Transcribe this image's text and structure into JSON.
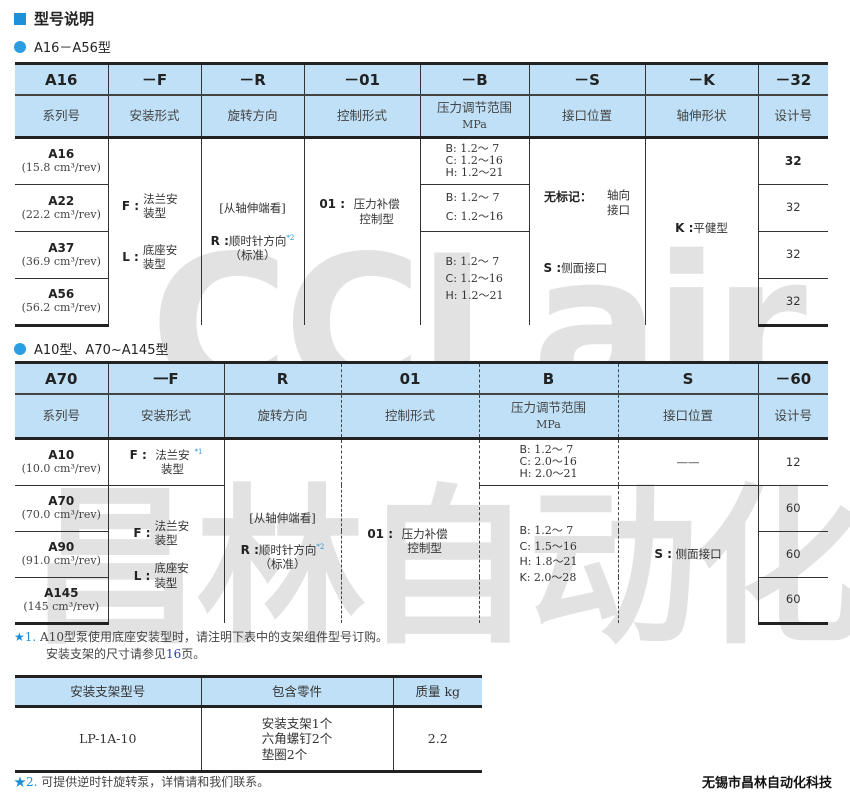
{
  "watermark": {
    "logo_text": "CCLair",
    "cn_text": "昌林自动化"
  },
  "heading": "型号说明",
  "section1": {
    "title": "A16－A56型",
    "codes": [
      "A16",
      "－F",
      "－R",
      "－01",
      "－B",
      "－S",
      "－K",
      "－32"
    ],
    "labels": [
      "系列号",
      "安装形式",
      "旋转方向",
      "控制形式",
      "压力调节范围",
      "接口位置",
      "轴伸形状",
      "设计号"
    ],
    "pressure_unit": "MPa",
    "series": [
      {
        "model": "A16",
        "disp": "(15.8 cm³/rev)",
        "design": "32"
      },
      {
        "model": "A22",
        "disp": "(22.2 cm³/rev)",
        "design": "32"
      },
      {
        "model": "A37",
        "disp": "(36.9 cm³/rev)",
        "design": "32"
      },
      {
        "model": "A56",
        "disp": "(56.2 cm³/rev)",
        "design": "32"
      }
    ],
    "mount": [
      {
        "code": "F :",
        "text": "法兰安装型"
      },
      {
        "code": "L :",
        "text": "底座安装型"
      }
    ],
    "rotation": {
      "view": "[从轴伸端看]",
      "code": "R :",
      "text": "顺时针方向",
      "std": "（标准）",
      "note": "*2"
    },
    "control": {
      "code": "01 :",
      "text": "压力补偿控制型"
    },
    "pressure": [
      [
        {
          "k": "B",
          "v": ": 1.2～ 7"
        },
        {
          "k": "C",
          "v": ": 1.2～16"
        },
        {
          "k": "H",
          "v": ": 1.2～21"
        }
      ],
      [
        {
          "k": "B",
          "v": ": 1.2～ 7"
        },
        {
          "k": "C",
          "v": ": 1.2～16"
        }
      ],
      [
        {
          "k": "B",
          "v": ": 1.2～ 7"
        },
        {
          "k": "C",
          "v": ": 1.2～16"
        },
        {
          "k": "H",
          "v": ": 1.2～21"
        }
      ]
    ],
    "port": [
      {
        "code": "无标记：",
        "text": "轴向接口"
      },
      {
        "code": "S :",
        "text": "侧面接口"
      }
    ],
    "shaft": {
      "code": "K :",
      "text": "平健型"
    }
  },
  "section2": {
    "title": "A10型、A70~A145型",
    "codes": [
      "A70",
      "一F",
      "R",
      "01",
      "B",
      "S",
      "－60"
    ],
    "labels": [
      "系列号",
      "安装形式",
      "旋转方向",
      "控制形式",
      "压力调节范围",
      "接口位置",
      "设计号"
    ],
    "pressure_unit": "MPa",
    "series": [
      {
        "model": "A10",
        "disp": "(10.0 cm³/rev)",
        "design": "12"
      },
      {
        "model": "A70",
        "disp": "(70.0 cm³/rev)",
        "design": "60"
      },
      {
        "model": "A90",
        "disp": "(91.0 cm³/rev)",
        "design": "60"
      },
      {
        "model": "A145",
        "disp": "(145 cm³/rev)",
        "design": "60"
      }
    ],
    "mount_a10": {
      "code": "F :",
      "text": "法兰安装型",
      "note": "*1"
    },
    "mount": [
      {
        "code": "F :",
        "text": "法兰安装型"
      },
      {
        "code": "L :",
        "text": "底座安装型"
      }
    ],
    "rotation": {
      "view": "[从轴伸端看]",
      "code": "R :",
      "text": "顺时针方向",
      "std": "（标准）",
      "note": "*2"
    },
    "control": {
      "code": "01 :",
      "text": "压力补偿控制型"
    },
    "pressure": [
      [
        {
          "k": "B",
          "v": ": 1.2～ 7"
        },
        {
          "k": "C",
          "v": ": 2.0～16"
        },
        {
          "k": "H",
          "v": ": 2.0～21"
        }
      ],
      [
        {
          "k": "B",
          "v": ": 1.2～ 7"
        },
        {
          "k": "C",
          "v": ": 1.5～16"
        },
        {
          "k": "H",
          "v": ": 1.8～21"
        },
        {
          "k": "K",
          "v": ": 2.0～28"
        }
      ]
    ],
    "port_a10": "——",
    "port": {
      "code": "S :",
      "text": "侧面接口"
    }
  },
  "notes": {
    "n1_mark": "★1.",
    "n1_line1": "A10型泵使用底座安装型时，请注明下表中的支架组件型号订购。",
    "n1_line2a": "安装支架的尺寸请参见",
    "n1_page": "16",
    "n1_line2b": "页。",
    "n2_mark": "★2.",
    "n2": "可提供逆时针旋转泵，详情请和我们联系。"
  },
  "bracket_table": {
    "headers": [
      "安装支架型号",
      "包含零件",
      "质量  kg"
    ],
    "row": {
      "model": "LP-1A-10",
      "parts": [
        "安装支架1个",
        "六角螺钉2个",
        "垫圈2个"
      ],
      "mass": "2.2"
    }
  },
  "company": "无锡市昌林自动化科技",
  "colors": {
    "header_bg": "#bfe0f6",
    "accent": "#1e90d8"
  }
}
